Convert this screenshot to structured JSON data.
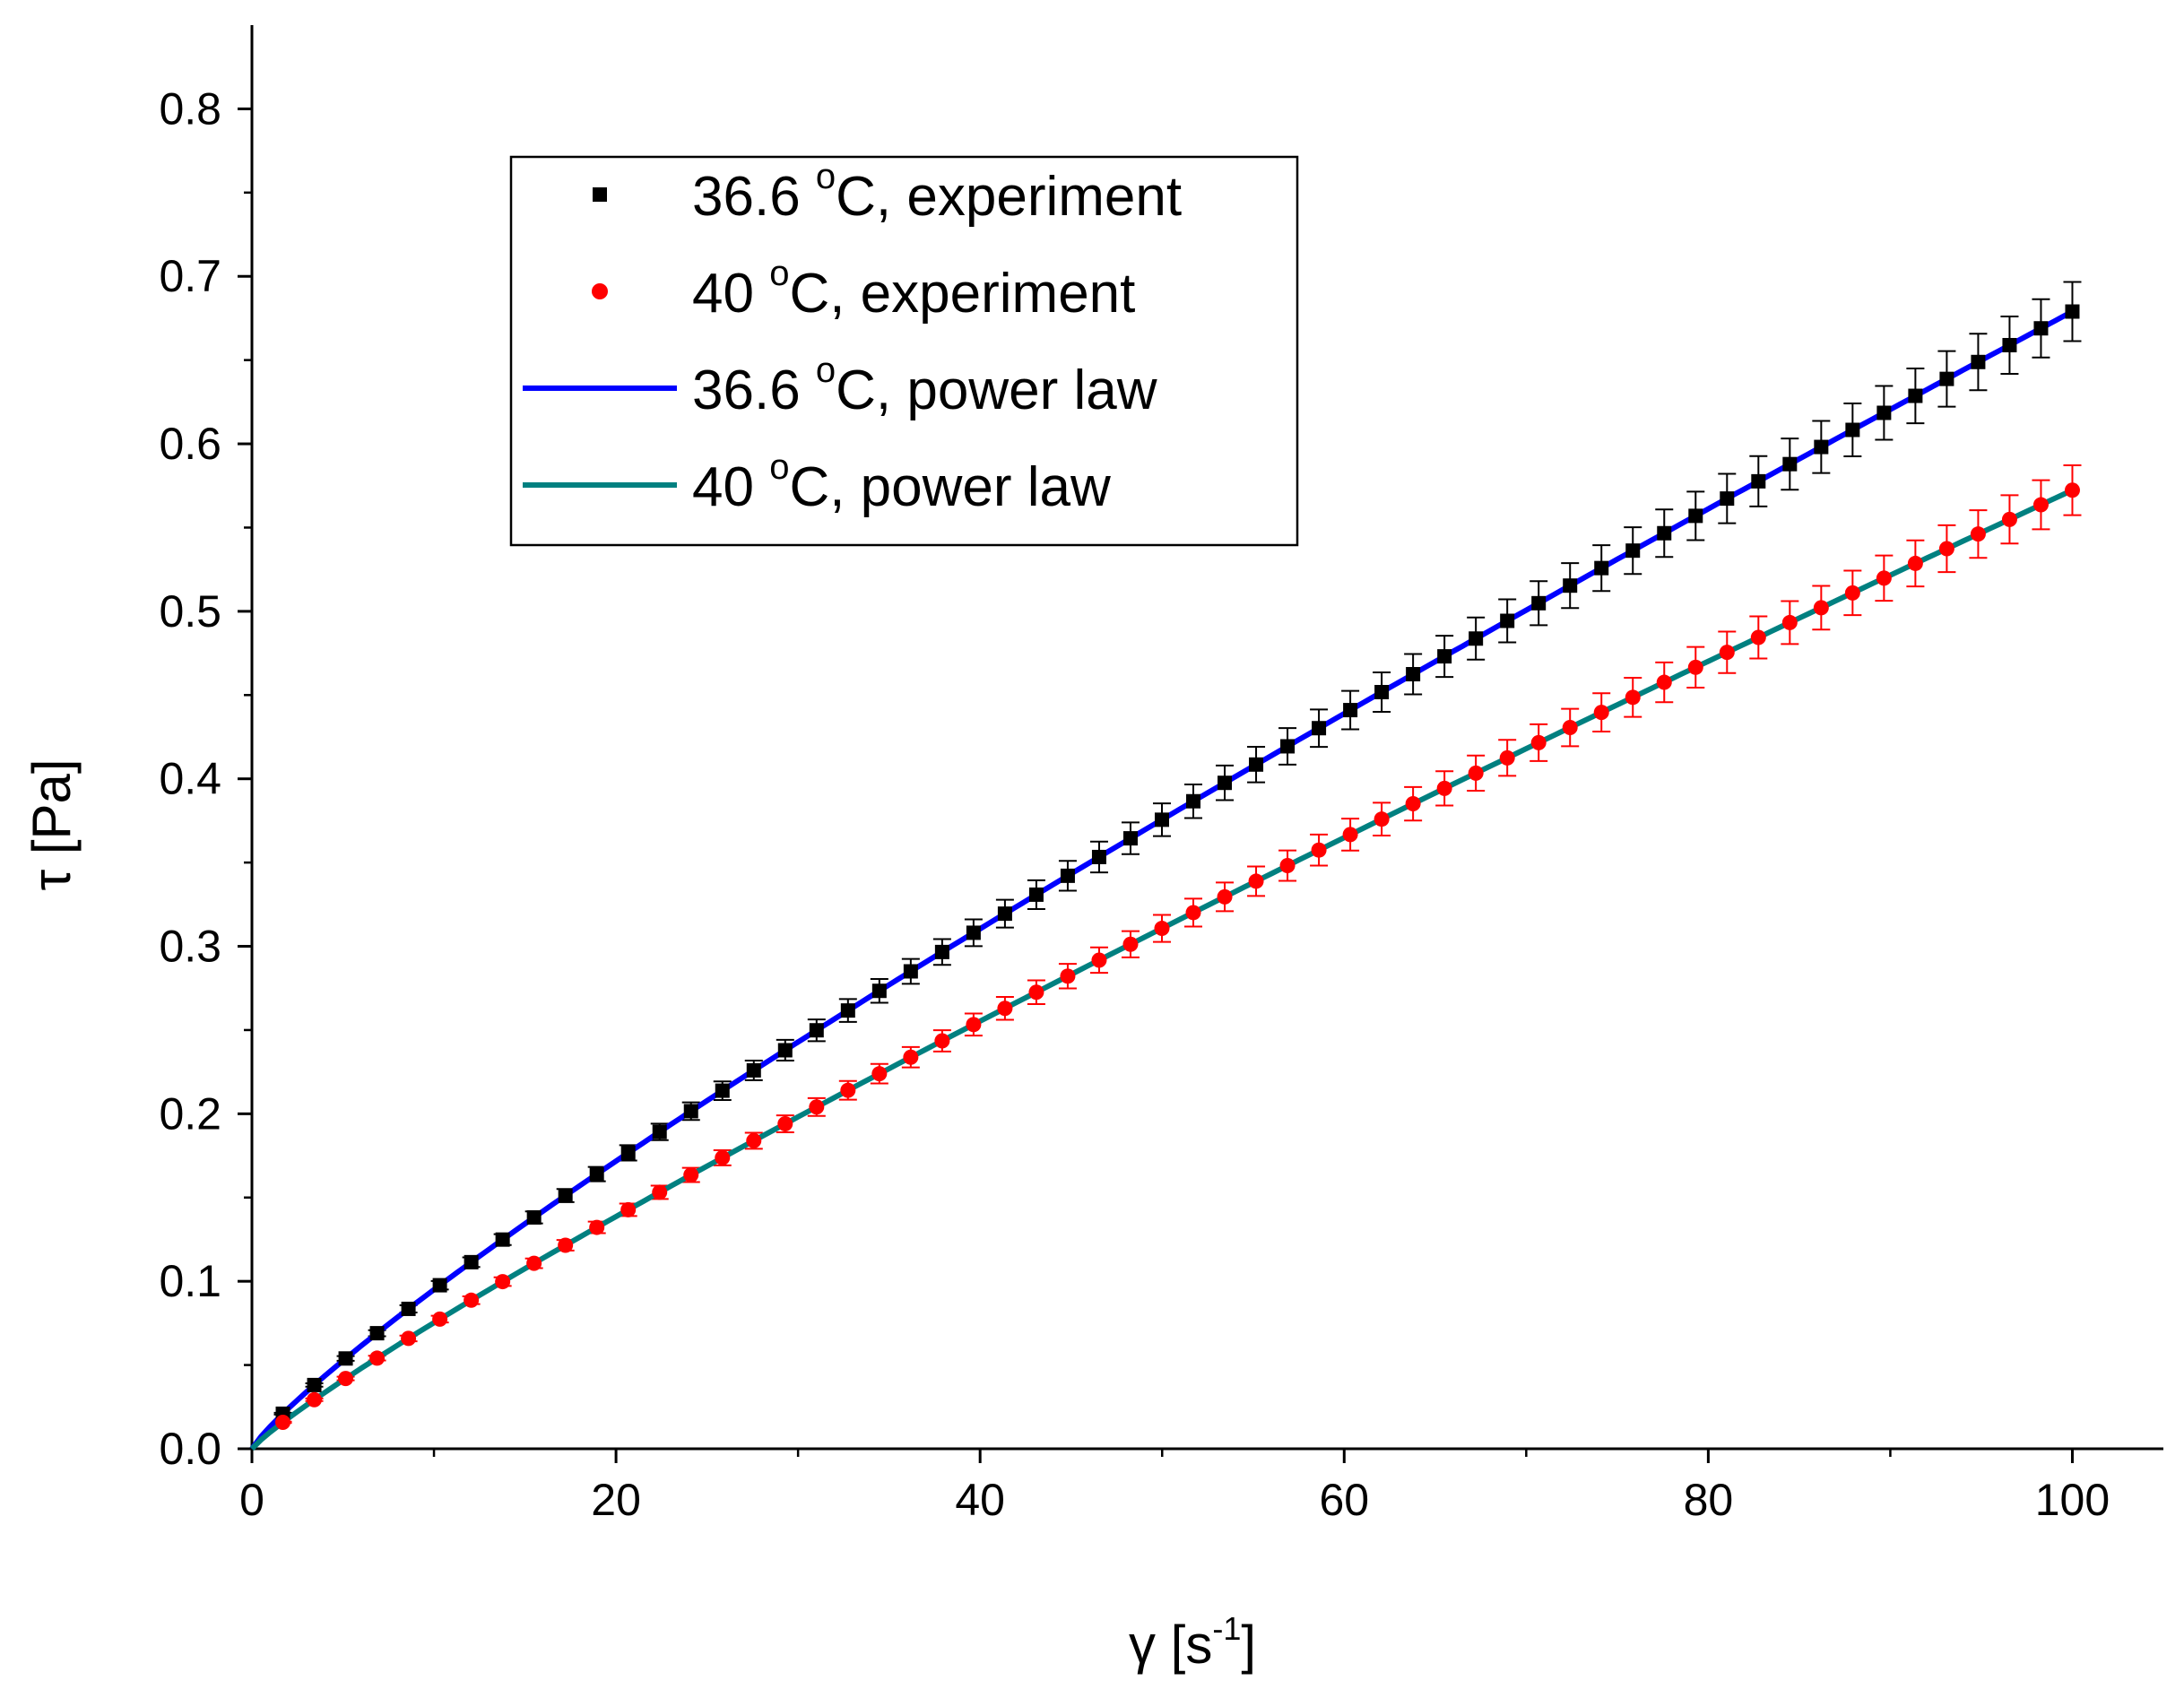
{
  "chart_data": {
    "type": "scatter",
    "title": "",
    "xlabel": {
      "symbol": "γ",
      "open": " [s",
      "sup": "-1",
      "close": "]"
    },
    "ylabel": "τ [Pa]",
    "xlim": [
      0,
      105
    ],
    "ylim": [
      0,
      0.85
    ],
    "x_ticks": [
      0,
      20,
      40,
      60,
      80,
      100
    ],
    "x_tick_labels": [
      "0",
      "20",
      "40",
      "60",
      "80",
      "100"
    ],
    "y_ticks": [
      0.0,
      0.1,
      0.2,
      0.3,
      0.4,
      0.5,
      0.6,
      0.7,
      0.8
    ],
    "y_tick_labels": [
      "0.0",
      "0.1",
      "0.2",
      "0.3",
      "0.4",
      "0.5",
      "0.6",
      "0.7",
      "0.8"
    ],
    "grid": false,
    "legend_position": "top-left",
    "x_points": {
      "start": 1.7,
      "end": 100,
      "count": 58
    },
    "series": [
      {
        "name": "36.6 °C, experiment",
        "legend": {
          "pre": "36.6 ",
          "sup": "o",
          "post": "C, experiment"
        },
        "kind": "points",
        "marker": "square",
        "color": "#000000",
        "error_color": "#000000",
        "model": {
          "K": 0.0133,
          "n": 0.854
        },
        "error_relative": 0.026
      },
      {
        "name": "40 °C, experiment",
        "legend": {
          "pre": "40 ",
          "sup": "o",
          "post": "C, experiment"
        },
        "kind": "points",
        "marker": "circle",
        "color": "#ff0000",
        "error_color": "#ff0000",
        "model": {
          "K": 0.0099,
          "n": 0.881
        },
        "error_relative": 0.026
      },
      {
        "name": "36.6 °C, power law",
        "legend": {
          "pre": "36.6 ",
          "sup": "o",
          "post": "C, power law"
        },
        "kind": "line",
        "color": "#0000ff",
        "model": {
          "K": 0.0133,
          "n": 0.854
        }
      },
      {
        "name": "40 °C, power law",
        "legend": {
          "pre": "40 ",
          "sup": "o",
          "post": "C, power law"
        },
        "kind": "line",
        "color": "#008080",
        "model": {
          "K": 0.0099,
          "n": 0.881
        }
      }
    ]
  }
}
